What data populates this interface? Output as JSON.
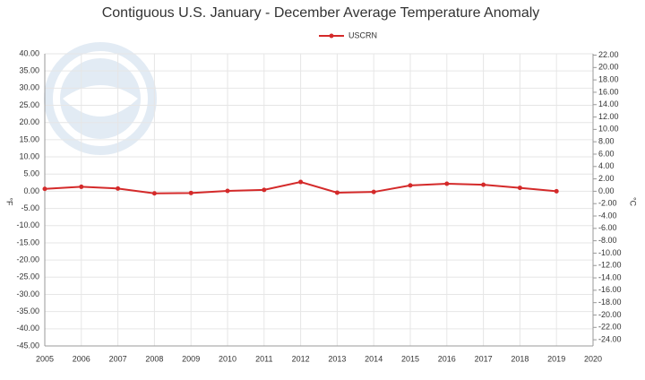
{
  "chart_data": {
    "type": "line",
    "title": "Contiguous U.S. January - December Average Temperature Anomaly",
    "y_label": "°F",
    "y2_label": "°C",
    "x": [
      2005,
      2006,
      2007,
      2008,
      2009,
      2010,
      2011,
      2012,
      2013,
      2014,
      2015,
      2016,
      2017,
      2018,
      2019
    ],
    "series": [
      {
        "name": "USCRN",
        "color": "#d42a2a",
        "values": [
          0.7,
          1.3,
          0.8,
          -0.6,
          -0.5,
          0.1,
          0.4,
          2.7,
          -0.4,
          -0.2,
          1.7,
          2.2,
          1.9,
          1.0,
          0.0
        ]
      }
    ],
    "xlim": [
      2005,
      2020
    ],
    "xticks": [
      2005,
      2006,
      2007,
      2008,
      2009,
      2010,
      2011,
      2012,
      2013,
      2014,
      2015,
      2016,
      2017,
      2018,
      2019,
      2020
    ],
    "ylim": [
      -45,
      40
    ],
    "yticks": [
      {
        "value": 40,
        "label": "40.00"
      },
      {
        "value": 35,
        "label": "35.00"
      },
      {
        "value": 30,
        "label": "30.00"
      },
      {
        "value": 25,
        "label": "25.00"
      },
      {
        "value": 20,
        "label": "20.00"
      },
      {
        "value": 15,
        "label": "15.00"
      },
      {
        "value": 10,
        "label": "10.00"
      },
      {
        "value": 5,
        "label": "5.00"
      },
      {
        "value": 0,
        "label": "0.00"
      },
      {
        "value": -5,
        "label": "-5.00"
      },
      {
        "value": -10,
        "label": "-10.00"
      },
      {
        "value": -15,
        "label": "-15.00"
      },
      {
        "value": -20,
        "label": "-20.00"
      },
      {
        "value": -25,
        "label": "-25.00"
      },
      {
        "value": -30,
        "label": "-30.00"
      },
      {
        "value": -35,
        "label": "-35.00"
      },
      {
        "value": -40,
        "label": "-40.00"
      },
      {
        "value": -45,
        "label": "-45.00"
      }
    ],
    "y2lim": [
      -25,
      22.22
    ],
    "y2ticks": [
      {
        "value": 22,
        "label": "22.00"
      },
      {
        "value": 20,
        "label": "20.00"
      },
      {
        "value": 18,
        "label": "18.00"
      },
      {
        "value": 16,
        "label": "16.00"
      },
      {
        "value": 14,
        "label": "14.00"
      },
      {
        "value": 12,
        "label": "12.00"
      },
      {
        "value": 10,
        "label": "10.00"
      },
      {
        "value": 8,
        "label": "8.00"
      },
      {
        "value": 6,
        "label": "6.00"
      },
      {
        "value": 4,
        "label": "4.00"
      },
      {
        "value": 2,
        "label": "2.00"
      },
      {
        "value": 0,
        "label": "0.00"
      },
      {
        "value": -2,
        "label": "-2.00"
      },
      {
        "value": -4,
        "label": "-4.00"
      },
      {
        "value": -6,
        "label": "-6.00"
      },
      {
        "value": -8,
        "label": "-8.00"
      },
      {
        "value": -10,
        "label": "-10.00"
      },
      {
        "value": -12,
        "label": "-12.00"
      },
      {
        "value": -14,
        "label": "-14.00"
      },
      {
        "value": -16,
        "label": "-16.00"
      },
      {
        "value": -18,
        "label": "-18.00"
      },
      {
        "value": -20,
        "label": "-20.00"
      },
      {
        "value": -22,
        "label": "-22.00"
      },
      {
        "value": -24,
        "label": "-24.00"
      }
    ],
    "grid": true
  }
}
